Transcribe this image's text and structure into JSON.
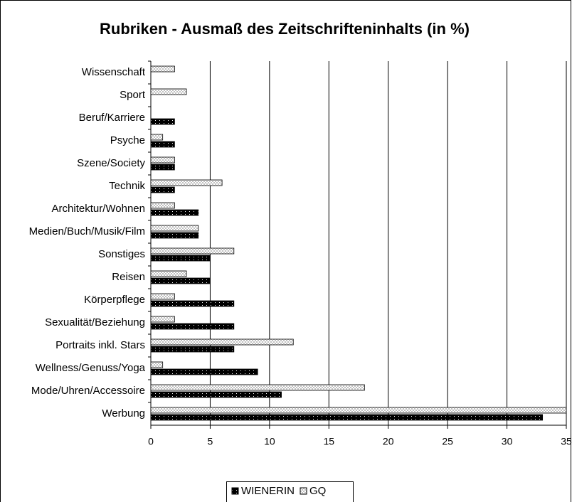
{
  "chart_data": {
    "type": "hbar",
    "title": "Rubriken - Ausmaß des Zeitschrifteninhalts (in %)",
    "categories": [
      "Wissenschaft",
      "Sport",
      "Beruf/Karriere",
      "Psyche",
      "Szene/Society",
      "Technik",
      "Architektur/Wohnen",
      "Medien/Buch/Musik/Film",
      "Sonstiges",
      "Reisen",
      "Körperpflege",
      "Sexualität/Beziehung",
      "Portraits inkl. Stars",
      "Wellness/Genuss/Yoga",
      "Mode/Uhren/Accessoire",
      "Werbung"
    ],
    "series": [
      {
        "name": "WIENERIN",
        "color": "#000000",
        "values": [
          0,
          0,
          2,
          2,
          2,
          2,
          4,
          4,
          5,
          5,
          7,
          7,
          7,
          9,
          11,
          33
        ]
      },
      {
        "name": "GQ",
        "color": "#c0c0c0",
        "values": [
          2,
          3,
          0,
          1,
          2,
          6,
          2,
          4,
          7,
          3,
          2,
          2,
          12,
          1,
          18,
          35
        ]
      }
    ],
    "xlim": [
      0,
      35
    ],
    "xticks": [
      0,
      5,
      10,
      15,
      20,
      25,
      30,
      35
    ],
    "grid": true,
    "legend": "bottom"
  }
}
